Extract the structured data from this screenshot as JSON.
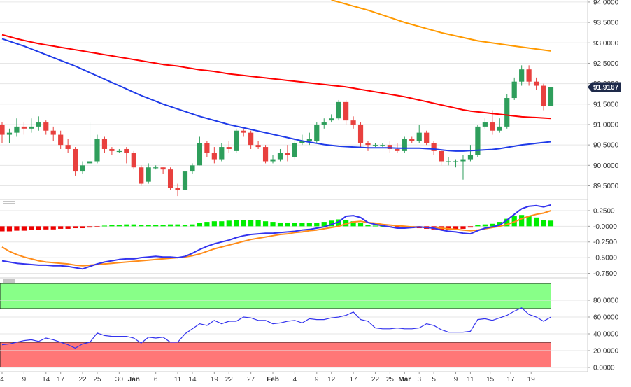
{
  "chart_data": [
    {
      "type": "candlestick",
      "name": "price",
      "ylim": [
        89.2,
        94.05
      ],
      "y_ticks": [
        "94.0000",
        "93.5000",
        "93.0000",
        "92.5000",
        "92.0000",
        "91.5000",
        "91.0000",
        "90.5000",
        "90.0000",
        "89.5000"
      ],
      "y_tick_values": [
        94.0,
        93.5,
        93.0,
        92.5,
        92.0,
        91.5,
        91.0,
        90.5,
        90.0,
        89.5
      ],
      "current_price": 91.9167,
      "current_price_label": "91.9167",
      "candles": [
        [
          91.0,
          90.75,
          91.05,
          90.55
        ],
        [
          90.75,
          90.8,
          90.9,
          90.55
        ],
        [
          90.8,
          90.95,
          91.15,
          90.7
        ],
        [
          90.95,
          90.9,
          91.05,
          90.75
        ],
        [
          90.9,
          90.95,
          91.15,
          90.8
        ],
        [
          90.95,
          91.05,
          91.2,
          90.85
        ],
        [
          91.05,
          90.85,
          91.1,
          90.75
        ],
        [
          90.85,
          90.75,
          90.95,
          90.6
        ],
        [
          90.75,
          90.5,
          90.85,
          90.4
        ],
        [
          90.5,
          90.4,
          90.65,
          90.3
        ],
        [
          90.4,
          89.85,
          90.45,
          89.75
        ],
        [
          89.85,
          90.0,
          90.1,
          89.8
        ],
        [
          90.05,
          90.1,
          91.05,
          90.05
        ],
        [
          90.1,
          90.65,
          90.75,
          90.05
        ],
        [
          90.65,
          90.4,
          90.7,
          90.3
        ],
        [
          90.4,
          90.35,
          90.45,
          90.25
        ],
        [
          90.35,
          90.35,
          90.4,
          90.3
        ],
        [
          90.4,
          90.3,
          90.45,
          90.05
        ],
        [
          90.3,
          89.95,
          90.35,
          89.9
        ],
        [
          89.95,
          89.55,
          90.0,
          89.5
        ],
        [
          89.6,
          89.95,
          90.05,
          89.55
        ],
        [
          89.95,
          89.95,
          90.0,
          89.9
        ],
        [
          89.95,
          89.9,
          89.95,
          89.8
        ],
        [
          89.9,
          89.45,
          89.95,
          89.4
        ],
        [
          89.45,
          89.4,
          89.55,
          89.25
        ],
        [
          89.4,
          89.85,
          89.9,
          89.35
        ],
        [
          89.85,
          90.0,
          90.05,
          89.8
        ],
        [
          90.0,
          90.55,
          90.7,
          90.0
        ],
        [
          90.55,
          90.3,
          90.6,
          90.2
        ],
        [
          90.3,
          90.15,
          90.45,
          90.05
        ],
        [
          90.15,
          90.45,
          90.55,
          90.1
        ],
        [
          90.45,
          90.4,
          90.6,
          90.3
        ],
        [
          90.35,
          90.85,
          90.9,
          90.3
        ],
        [
          90.85,
          90.8,
          90.9,
          90.7
        ],
        [
          90.8,
          90.5,
          90.85,
          90.4
        ],
        [
          90.5,
          90.45,
          90.6,
          90.4
        ],
        [
          90.45,
          90.1,
          90.5,
          90.05
        ],
        [
          90.1,
          90.15,
          90.25,
          90.05
        ],
        [
          90.15,
          90.3,
          90.4,
          90.1
        ],
        [
          90.3,
          90.25,
          90.5,
          90.1
        ],
        [
          90.2,
          90.55,
          90.65,
          90.15
        ],
        [
          90.55,
          90.6,
          90.75,
          90.5
        ],
        [
          90.6,
          90.65,
          90.8,
          90.5
        ],
        [
          90.6,
          91.0,
          91.05,
          90.55
        ],
        [
          91.0,
          91.05,
          91.15,
          90.9
        ],
        [
          91.1,
          91.15,
          91.25,
          91.05
        ],
        [
          91.15,
          91.55,
          91.6,
          91.1
        ],
        [
          91.55,
          91.1,
          91.6,
          91.0
        ],
        [
          91.1,
          91.0,
          91.2,
          90.9
        ],
        [
          91.0,
          90.55,
          91.05,
          90.45
        ],
        [
          90.55,
          90.5,
          90.6,
          90.35
        ],
        [
          90.5,
          90.5,
          90.55,
          90.45
        ],
        [
          90.5,
          90.5,
          90.55,
          90.45
        ],
        [
          90.5,
          90.4,
          90.6,
          90.3
        ],
        [
          90.4,
          90.35,
          90.55,
          90.3
        ],
        [
          90.35,
          90.65,
          90.7,
          90.3
        ],
        [
          90.65,
          90.6,
          90.7,
          90.55
        ],
        [
          90.6,
          90.8,
          91.0,
          90.55
        ],
        [
          90.8,
          90.55,
          90.85,
          90.5
        ],
        [
          90.55,
          90.35,
          90.6,
          90.25
        ],
        [
          90.35,
          90.1,
          90.4,
          90.0
        ],
        [
          90.1,
          90.1,
          90.2,
          90.0
        ],
        [
          90.1,
          90.1,
          90.15,
          89.95
        ],
        [
          90.1,
          90.15,
          90.25,
          89.65
        ],
        [
          90.15,
          90.25,
          90.5,
          90.1
        ],
        [
          90.25,
          90.95,
          91.0,
          90.2
        ],
        [
          90.95,
          91.05,
          91.15,
          90.9
        ],
        [
          91.05,
          90.85,
          91.35,
          90.75
        ],
        [
          90.85,
          90.95,
          91.15,
          90.8
        ],
        [
          90.95,
          91.65,
          91.75,
          90.9
        ],
        [
          91.65,
          92.05,
          92.15,
          91.6
        ],
        [
          92.05,
          92.35,
          92.45,
          91.95
        ],
        [
          92.35,
          92.05,
          92.45,
          91.95
        ],
        [
          92.05,
          91.95,
          92.15,
          91.85
        ],
        [
          91.95,
          91.45,
          92.0,
          91.35
        ],
        [
          91.45,
          91.9167,
          91.95,
          91.4
        ]
      ],
      "sma_200": [
        93.2,
        93.15,
        93.1,
        93.06,
        93.02,
        92.98,
        92.95,
        92.92,
        92.89,
        92.86,
        92.83,
        92.8,
        92.77,
        92.74,
        92.71,
        92.68,
        92.65,
        92.62,
        92.59,
        92.56,
        92.53,
        92.5,
        92.47,
        92.45,
        92.43,
        92.4,
        92.37,
        92.34,
        92.32,
        92.3,
        92.27,
        92.24,
        92.22,
        92.2,
        92.18,
        92.16,
        92.14,
        92.12,
        92.1,
        92.08,
        92.06,
        92.04,
        92.02,
        92.0,
        91.98,
        91.96,
        91.94,
        91.92,
        91.89,
        91.86,
        91.83,
        91.8,
        91.77,
        91.74,
        91.71,
        91.68,
        91.64,
        91.6,
        91.56,
        91.52,
        91.48,
        91.44,
        91.4,
        91.36,
        91.33,
        91.31,
        91.29,
        91.27,
        91.25,
        91.23,
        91.21,
        91.19,
        91.18,
        91.17,
        91.16,
        91.15
      ],
      "sma_100": [
        93.1,
        93.04,
        92.98,
        92.92,
        92.85,
        92.78,
        92.71,
        92.64,
        92.57,
        92.5,
        92.43,
        92.35,
        92.27,
        92.19,
        92.11,
        92.03,
        91.95,
        91.87,
        91.79,
        91.71,
        91.64,
        91.57,
        91.5,
        91.44,
        91.38,
        91.32,
        91.26,
        91.2,
        91.15,
        91.1,
        91.05,
        91.0,
        90.96,
        90.92,
        90.88,
        90.84,
        90.8,
        90.76,
        90.72,
        90.68,
        90.64,
        90.6,
        90.57,
        90.54,
        90.51,
        90.49,
        90.47,
        90.46,
        90.45,
        90.44,
        90.43,
        90.43,
        90.43,
        90.43,
        90.42,
        90.42,
        90.42,
        90.42,
        90.41,
        90.4,
        90.38,
        90.36,
        90.35,
        90.35,
        90.36,
        90.37,
        90.38,
        90.39,
        90.41,
        90.44,
        90.47,
        90.5,
        90.52,
        90.54,
        90.56,
        90.58
      ],
      "sma_upper_x": [
        45,
        50,
        55,
        60,
        65,
        70,
        75
      ],
      "sma_upper": [
        94.05,
        93.8,
        93.5,
        93.25,
        93.05,
        92.92,
        92.8
      ]
    },
    {
      "type": "bar-line",
      "name": "macd",
      "ylim": [
        -0.8,
        0.35
      ],
      "y_ticks": [
        "0.2500",
        "-0.0000",
        "-0.2500",
        "-0.5000",
        "-0.7500"
      ],
      "y_tick_values": [
        0.25,
        0.0,
        -0.25,
        -0.5,
        -0.75
      ],
      "histogram": [
        -0.08,
        -0.08,
        -0.07,
        -0.07,
        -0.06,
        -0.06,
        -0.05,
        -0.05,
        -0.04,
        -0.04,
        -0.03,
        -0.03,
        -0.02,
        -0.01,
        0.01,
        0.02,
        0.02,
        0.03,
        0.03,
        0.02,
        0.02,
        0.02,
        0.02,
        0.03,
        0.03,
        0.02,
        0.03,
        0.05,
        0.07,
        0.08,
        0.08,
        0.09,
        0.1,
        0.1,
        0.1,
        0.1,
        0.08,
        0.07,
        0.06,
        0.06,
        0.05,
        0.05,
        0.05,
        0.06,
        0.07,
        0.09,
        0.11,
        0.1,
        0.08,
        0.05,
        0.02,
        0.01,
        0.0,
        -0.01,
        -0.01,
        -0.02,
        -0.03,
        -0.03,
        -0.04,
        -0.05,
        -0.06,
        -0.06,
        -0.05,
        -0.04,
        -0.02,
        0.02,
        0.03,
        0.04,
        0.07,
        0.12,
        0.16,
        0.18,
        0.17,
        0.14,
        0.1,
        0.09
      ],
      "macd_line": [
        -0.55,
        -0.57,
        -0.59,
        -0.6,
        -0.61,
        -0.62,
        -0.62,
        -0.63,
        -0.63,
        -0.64,
        -0.66,
        -0.68,
        -0.64,
        -0.6,
        -0.57,
        -0.55,
        -0.53,
        -0.52,
        -0.52,
        -0.5,
        -0.49,
        -0.48,
        -0.49,
        -0.49,
        -0.5,
        -0.48,
        -0.43,
        -0.37,
        -0.32,
        -0.28,
        -0.25,
        -0.22,
        -0.18,
        -0.15,
        -0.13,
        -0.12,
        -0.11,
        -0.11,
        -0.1,
        -0.09,
        -0.08,
        -0.06,
        -0.05,
        -0.03,
        -0.01,
        0.03,
        0.07,
        0.16,
        0.17,
        0.14,
        0.06,
        0.03,
        0.01,
        -0.01,
        -0.03,
        -0.03,
        -0.02,
        -0.01,
        -0.02,
        -0.03,
        -0.06,
        -0.08,
        -0.09,
        -0.11,
        -0.12,
        -0.07,
        -0.03,
        -0.01,
        0.02,
        0.1,
        0.19,
        0.28,
        0.32,
        0.33,
        0.31,
        0.34
      ],
      "signal_line": [
        -0.33,
        -0.4,
        -0.45,
        -0.49,
        -0.52,
        -0.55,
        -0.57,
        -0.58,
        -0.59,
        -0.6,
        -0.62,
        -0.63,
        -0.62,
        -0.61,
        -0.6,
        -0.59,
        -0.58,
        -0.57,
        -0.56,
        -0.55,
        -0.54,
        -0.53,
        -0.52,
        -0.51,
        -0.5,
        -0.49,
        -0.47,
        -0.44,
        -0.4,
        -0.36,
        -0.33,
        -0.3,
        -0.27,
        -0.24,
        -0.21,
        -0.19,
        -0.17,
        -0.15,
        -0.13,
        -0.12,
        -0.1,
        -0.09,
        -0.07,
        -0.06,
        -0.04,
        -0.02,
        0.0,
        0.04,
        0.07,
        0.08,
        0.06,
        0.05,
        0.03,
        0.02,
        0.01,
        0.0,
        -0.01,
        -0.01,
        -0.02,
        -0.02,
        -0.03,
        -0.04,
        -0.05,
        -0.06,
        -0.07,
        -0.06,
        -0.04,
        -0.02,
        0.0,
        0.03,
        0.07,
        0.12,
        0.16,
        0.19,
        0.21,
        0.25
      ]
    },
    {
      "type": "line",
      "name": "rsi",
      "ylim": [
        0,
        100
      ],
      "y_ticks": [
        "80.0000",
        "60.0000",
        "40.0000",
        "20.0000",
        "0.0000"
      ],
      "y_tick_values": [
        80,
        60,
        40,
        20,
        0
      ],
      "overbought_range": [
        70,
        100
      ],
      "oversold_range": [
        0,
        30
      ],
      "values": [
        27,
        28,
        30,
        32,
        33,
        31,
        35,
        33,
        30,
        27,
        23,
        28,
        30,
        41,
        38,
        37,
        37,
        37,
        35,
        29,
        36,
        35,
        36,
        30,
        30,
        40,
        46,
        52,
        50,
        56,
        52,
        55,
        55,
        60,
        59,
        56,
        56,
        52,
        53,
        55,
        56,
        53,
        58,
        57,
        57,
        59,
        60,
        62,
        66,
        57,
        55,
        47,
        46,
        46,
        47,
        46,
        46,
        47,
        52,
        50,
        45,
        42,
        42,
        42,
        43,
        57,
        58,
        56,
        59,
        62,
        67,
        71,
        63,
        60,
        55,
        60
      ]
    },
    {
      "type": "x-axis",
      "labels": [
        "4",
        "9",
        "14",
        "17",
        "22",
        "25",
        "30",
        "Jan",
        "6",
        "11",
        "14",
        "19",
        "22",
        "27",
        "Feb",
        "4",
        "9",
        "12",
        "17",
        "22",
        "25",
        "Mar",
        "3",
        "5",
        "9",
        "11",
        "15",
        "17",
        "19"
      ],
      "label_index": [
        0,
        3,
        6,
        8,
        11,
        13,
        16,
        18,
        21,
        24,
        26,
        29,
        31,
        34,
        37,
        40,
        43,
        45,
        48,
        51,
        53,
        55,
        57,
        59,
        62,
        64,
        66.7,
        69.5,
        72.3
      ],
      "bold_labels": [
        "Jan",
        "Feb",
        "Mar"
      ]
    }
  ],
  "colors": {
    "candle_up": "#2e9e5b",
    "candle_down": "#e8403e",
    "sma_200": "#ff0000",
    "sma_100": "#1f3be8",
    "sma_upper": "#ff9900",
    "macd_hist_up": "#00ee00",
    "macd_hist_down": "#ee0000",
    "macd_line": "#3333ee",
    "signal_line": "#ff8c1a",
    "rsi_line": "#3333ee",
    "rsi_overbought": "#88ff88",
    "rsi_oversold": "#ff7777",
    "price_tag": "#1e2a4a",
    "grid": "#e6e6e6"
  }
}
